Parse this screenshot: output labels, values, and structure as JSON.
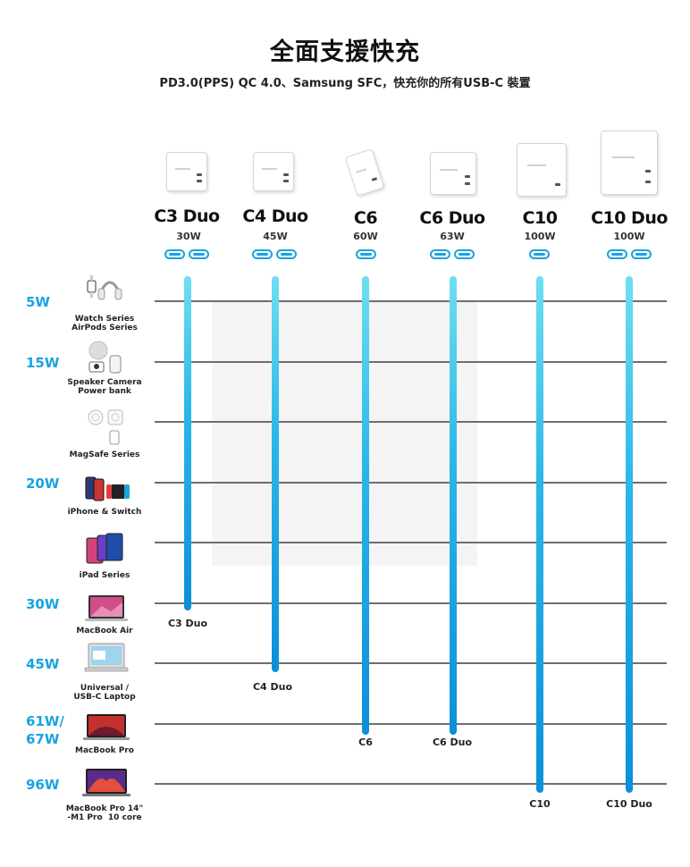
{
  "header": {
    "title": "全面支援快充",
    "subtitle": "PD3.0(PPS) QC 4.0、Samsung SFC，快充你的所有USB-C 裝置"
  },
  "watt_levels": [
    "5W",
    "15W",
    "20W",
    "30W",
    "45W",
    "61W/\n67W",
    "96W"
  ],
  "devices": [
    {
      "label": "Watch Series\nAirPods Series",
      "icon": "watch-airpods-icon"
    },
    {
      "label": "Speaker Camera\nPower bank",
      "icon": "speaker-camera-powerbank-icon"
    },
    {
      "label": "MagSafe Series",
      "icon": "magsafe-icon"
    },
    {
      "label": "iPhone & Switch",
      "icon": "iphone-switch-icon"
    },
    {
      "label": "iPad Series",
      "icon": "ipad-icon"
    },
    {
      "label": "MacBook Air",
      "icon": "macbook-air-icon"
    },
    {
      "label": "Universal /\nUSB-C Laptop",
      "icon": "laptop-icon"
    },
    {
      "label": "MacBook Pro",
      "icon": "macbook-pro-icon"
    },
    {
      "label": "MacBook Pro 14\"\n-M1 Pro  10 core",
      "icon": "macbook-pro-14-icon"
    }
  ],
  "products": [
    {
      "name": "C3 Duo",
      "watt": "30W",
      "ports": 2,
      "max_level": "30W",
      "bar_label": "C3 Duo"
    },
    {
      "name": "C4 Duo",
      "watt": "45W",
      "ports": 2,
      "max_level": "45W",
      "bar_label": "C4 Duo"
    },
    {
      "name": "C6",
      "watt": "60W",
      "ports": 1,
      "max_level": "61W/67W",
      "bar_label": "C6"
    },
    {
      "name": "C6 Duo",
      "watt": "63W",
      "ports": 2,
      "max_level": "61W/67W",
      "bar_label": "C6 Duo"
    },
    {
      "name": "C10",
      "watt": "100W",
      "ports": 1,
      "max_level": "96W",
      "bar_label": "C10"
    },
    {
      "name": "C10 Duo",
      "watt": "100W",
      "ports": 2,
      "max_level": "96W",
      "bar_label": "C10 Duo"
    }
  ],
  "colors": {
    "accent": "#1aa3e0",
    "bar_top": "#6edff0",
    "bar_bottom": "#0c8fd9",
    "grid": "#6e6e6e"
  }
}
